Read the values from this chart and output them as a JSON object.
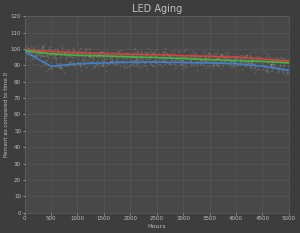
{
  "title": "LED Aging",
  "xlabel": "Hours",
  "ylabel": "Percent as compared to time 0",
  "background_color": "#3d3d3d",
  "plot_bg_color": "#484848",
  "grid_color": "#5e5e5e",
  "text_color": "#c0c0c0",
  "xlim": [
    0,
    5000
  ],
  "ylim": [
    0,
    120
  ],
  "xticks": [
    0,
    500,
    1000,
    1500,
    2000,
    2500,
    3000,
    3500,
    4000,
    4500,
    5000
  ],
  "yticks": [
    0,
    10,
    20,
    30,
    40,
    50,
    60,
    70,
    80,
    90,
    100,
    110,
    120
  ],
  "series": {
    "red": {
      "color": "#d94040",
      "x": [
        0,
        500,
        1000,
        1500,
        2000,
        2500,
        3000,
        3500,
        4000,
        4500,
        5000
      ],
      "y": [
        99.5,
        98.5,
        97.8,
        97.2,
        96.8,
        96.5,
        96.0,
        95.5,
        95.0,
        94.0,
        92.5
      ]
    },
    "green": {
      "color": "#40b840",
      "x": [
        0,
        500,
        1000,
        1500,
        2000,
        2500,
        3000,
        3500,
        4000,
        4500,
        5000
      ],
      "y": [
        99.0,
        97.0,
        96.2,
        95.8,
        95.2,
        94.8,
        94.2,
        93.5,
        93.0,
        92.5,
        91.5
      ]
    },
    "blue": {
      "color": "#4080d0",
      "x": [
        0,
        500,
        1000,
        1500,
        2000,
        2500,
        3000,
        3500,
        4000,
        4500,
        5000
      ],
      "y": [
        98.5,
        89.5,
        91.0,
        91.5,
        92.0,
        92.0,
        91.8,
        91.5,
        91.0,
        89.5,
        87.0
      ]
    }
  },
  "scatter_noise_x": 80,
  "scatter_noise_y": 1.8,
  "scatter_n": 400,
  "scatter_alpha": 0.25,
  "scatter_color": "#a8a898",
  "scatter_size": 1.5,
  "title_fontsize": 7,
  "tick_fontsize": 4,
  "label_fontsize": 4.5,
  "ylabel_fontsize": 4,
  "line_width": 1.2
}
